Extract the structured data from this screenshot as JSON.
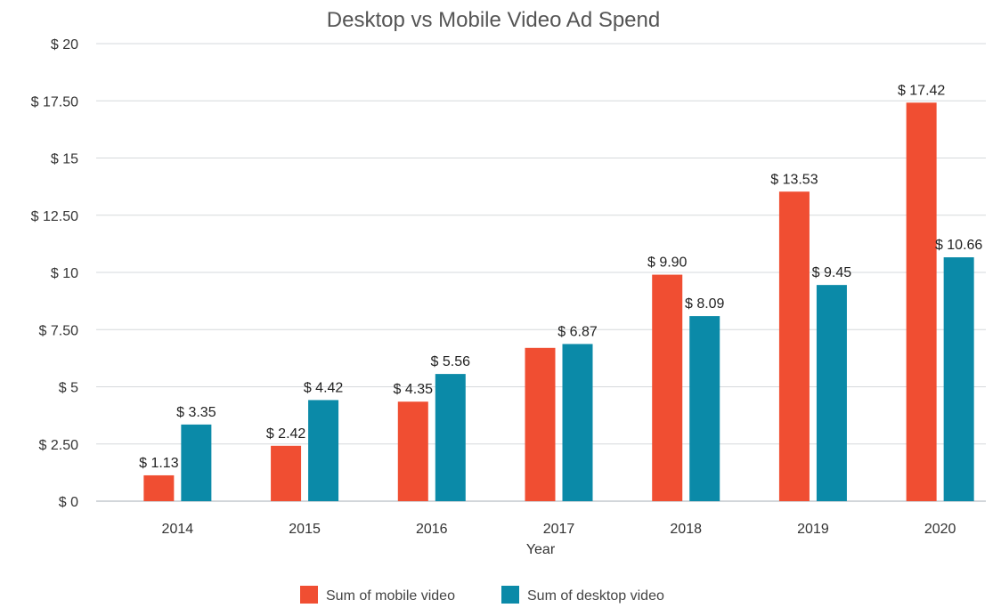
{
  "chart_data": {
    "type": "bar",
    "title": "Desktop vs Mobile Video Ad Spend",
    "xlabel": "Year",
    "ylabel": "",
    "ylim": [
      0,
      20
    ],
    "yticks": [
      0,
      2.5,
      5,
      7.5,
      10,
      12.5,
      15,
      17.5,
      20
    ],
    "ytick_labels": [
      "$ 0",
      "$ 2.50",
      "$ 5",
      "$ 7.50",
      "$ 10",
      "$ 12.50",
      "$ 15",
      "$ 17.50",
      "$ 20"
    ],
    "categories": [
      "2014",
      "2015",
      "2016",
      "2017",
      "2018",
      "2019",
      "2020"
    ],
    "grid": true,
    "legend_position": "bottom",
    "series": [
      {
        "name": "Sum of mobile video",
        "color": "#f04e32",
        "values": [
          1.13,
          2.42,
          4.35,
          6.7,
          9.9,
          13.53,
          17.42
        ],
        "labels": [
          "$ 1.13",
          "$ 2.42",
          "$ 4.35",
          "",
          "$ 9.90",
          "$ 13.53",
          "$ 17.42"
        ]
      },
      {
        "name": "Sum of desktop video",
        "color": "#0b8aa8",
        "values": [
          3.35,
          4.42,
          5.56,
          6.87,
          8.09,
          9.45,
          10.66
        ],
        "labels": [
          "$ 3.35",
          "$ 4.42",
          "$ 5.56",
          "$ 6.87",
          "$ 8.09",
          "$ 9.45",
          "$ 10.66"
        ]
      }
    ]
  }
}
